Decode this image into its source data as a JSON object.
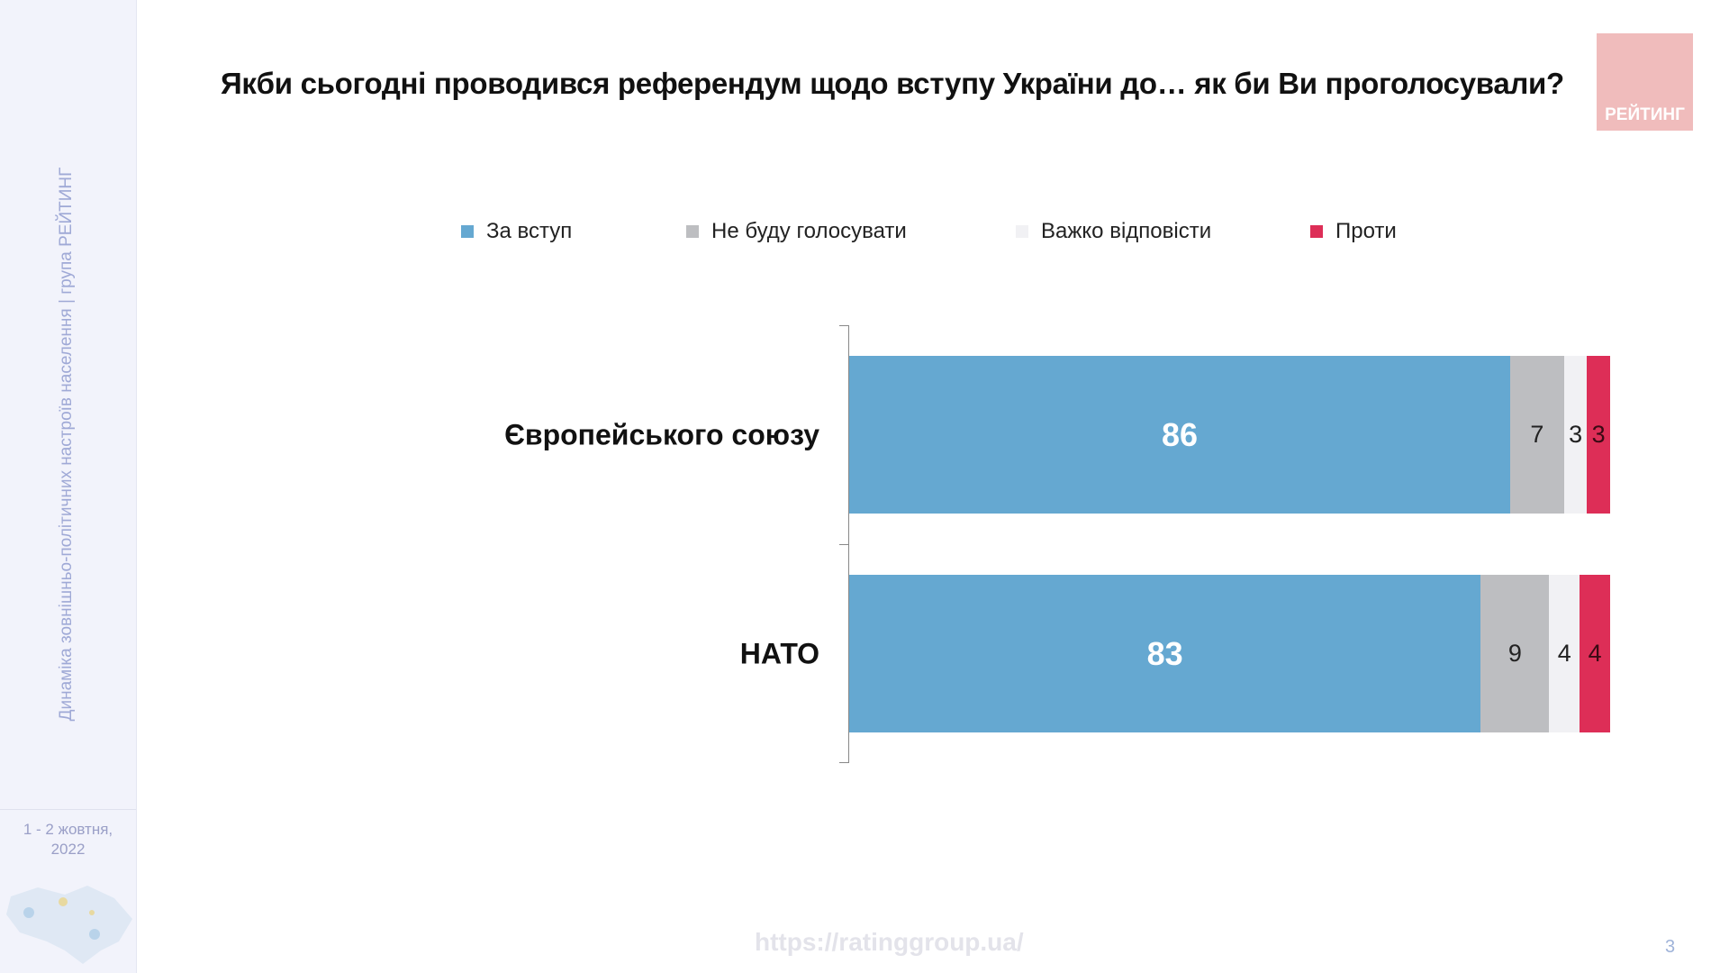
{
  "sidebar": {
    "vertical_text": "Динаміка зовнішньо-політичних настроїв населення | група РЕЙТИНГ",
    "date_line1": "1 - 2 жовтня,",
    "date_line2": "2022"
  },
  "logo": {
    "text": "РЕЙТИНГ"
  },
  "footer": {
    "url": "https://ratinggroup.ua/",
    "page_number": "3"
  },
  "chart_data": {
    "type": "bar",
    "orientation": "horizontal",
    "stacked": true,
    "title": "Якби сьогодні проводився референдум щодо вступу України до… як би Ви проголосували?",
    "categories": [
      "Європейського союзу",
      "НАТО"
    ],
    "legend_position": "top",
    "series": [
      {
        "name": "За вступ",
        "color": "#65a8d1",
        "label_color": "#ffffff",
        "values": [
          86,
          83
        ]
      },
      {
        "name": "Не буду голосувати",
        "color": "#bdbec1",
        "label_color": "#222222",
        "values": [
          7,
          9
        ]
      },
      {
        "name": "Важко відповісти",
        "color": "#f1f1f4",
        "label_color": "#222222",
        "values": [
          3,
          4
        ]
      },
      {
        "name": "Проти",
        "color": "#dd2e57",
        "label_color": "#3a0a14",
        "values": [
          3,
          4
        ]
      }
    ]
  }
}
